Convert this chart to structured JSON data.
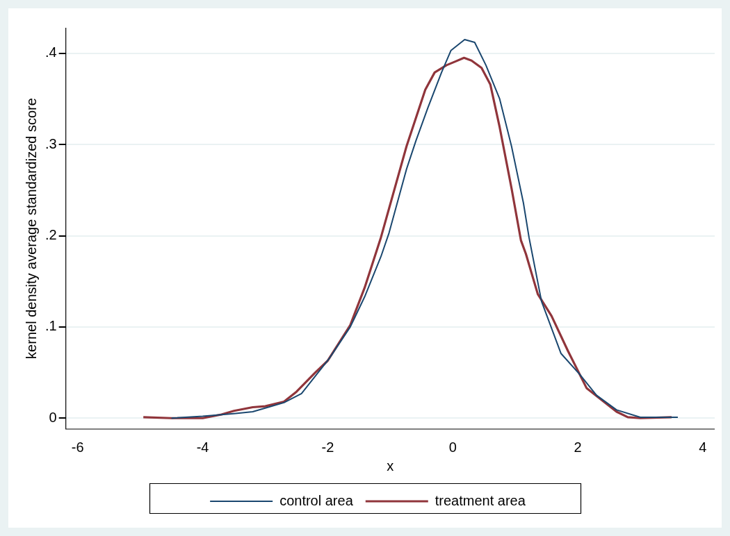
{
  "chart_data": {
    "type": "line",
    "xlabel": "x",
    "ylabel": "kernel density average standardized score",
    "xlim": [
      -6.19,
      4.19
    ],
    "ylim": [
      -0.012,
      0.428
    ],
    "xticks": [
      -6,
      -4,
      -2,
      0,
      2,
      4
    ],
    "yticks": [
      {
        "value": 0,
        "label": "0"
      },
      {
        "value": 0.1,
        "label": ".1"
      },
      {
        "value": 0.2,
        "label": ".2"
      },
      {
        "value": 0.3,
        "label": ".3"
      },
      {
        "value": 0.4,
        "label": ".4"
      }
    ],
    "grid": "y",
    "legend": "bottom",
    "marker": "none",
    "line_style": "solid",
    "series": [
      {
        "name": "control area",
        "color": "#1a476f",
        "x": [
          -4.5,
          -4,
          -3.5,
          -3.2,
          -3,
          -2.7,
          -2.42,
          -1.97,
          -1.64,
          -1.41,
          -1.15,
          -1.02,
          -0.74,
          -0.59,
          -0.4,
          -0.18,
          -0.03,
          0.19,
          0.35,
          0.53,
          0.75,
          0.94,
          1.13,
          1.22,
          1.42,
          1.73,
          2.03,
          2.3,
          2.62,
          3.0,
          3.6
        ],
        "values": [
          0.0,
          0.002,
          0.005,
          0.007,
          0.011,
          0.017,
          0.027,
          0.066,
          0.1,
          0.133,
          0.177,
          0.203,
          0.273,
          0.304,
          0.34,
          0.379,
          0.403,
          0.415,
          0.412,
          0.387,
          0.35,
          0.298,
          0.236,
          0.198,
          0.128,
          0.071,
          0.048,
          0.025,
          0.009,
          0.001,
          0.001
        ]
      },
      {
        "name": "treatment area",
        "color": "#90353b",
        "x": [
          -4.95,
          -4.5,
          -4,
          -3.7,
          -3.5,
          -3.2,
          -3,
          -2.7,
          -2.5,
          -2.2,
          -2,
          -1.64,
          -1.41,
          -1.15,
          -0.74,
          -0.44,
          -0.29,
          -0.1,
          0.04,
          0.18,
          0.3,
          0.46,
          0.6,
          0.75,
          0.94,
          1.09,
          1.17,
          1.36,
          1.58,
          1.84,
          2.14,
          2.62,
          2.8,
          3.0,
          3.5
        ],
        "values": [
          0.001,
          0.0,
          0.0,
          0.004,
          0.008,
          0.012,
          0.013,
          0.018,
          0.029,
          0.05,
          0.063,
          0.102,
          0.143,
          0.198,
          0.298,
          0.36,
          0.379,
          0.387,
          0.391,
          0.395,
          0.392,
          0.384,
          0.366,
          0.319,
          0.252,
          0.195,
          0.18,
          0.136,
          0.112,
          0.074,
          0.033,
          0.007,
          0.001,
          0.0,
          0.001
        ]
      }
    ]
  }
}
